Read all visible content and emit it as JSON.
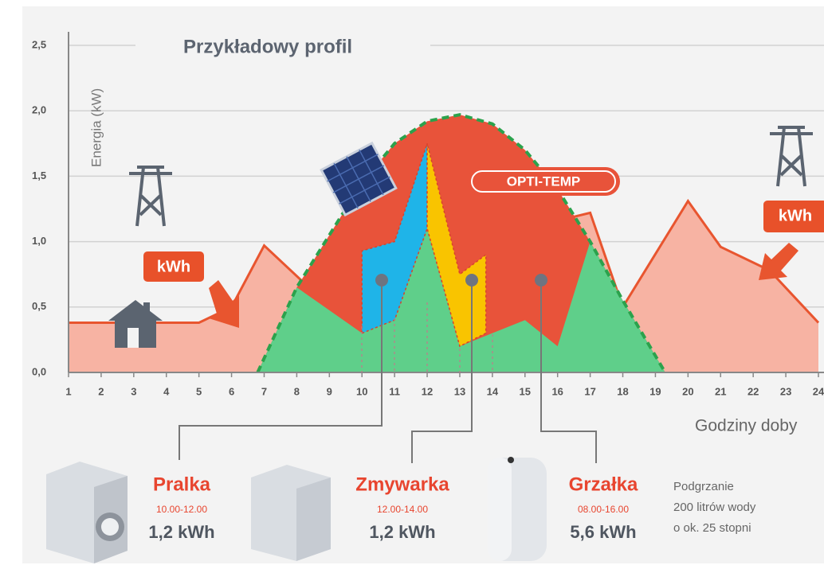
{
  "chart_data": {
    "type": "area",
    "title": "Przykładowy profil",
    "y_label": "Energia (kW)",
    "x_label": "Godziny doby",
    "xlim": [
      1,
      24
    ],
    "xticks": [
      1,
      2,
      3,
      4,
      5,
      6,
      7,
      8,
      9,
      10,
      11,
      12,
      13,
      14,
      15,
      16,
      17,
      18,
      19,
      20,
      21,
      22,
      23,
      24
    ],
    "ylim": [
      0,
      2.5
    ],
    "yticks": [
      {
        "value": 0,
        "label": "0,0"
      },
      {
        "value": 0.5,
        "label": "0,5"
      },
      {
        "value": 1,
        "label": "1,0"
      },
      {
        "value": 1.5,
        "label": "1,5"
      },
      {
        "value": 2,
        "label": "2,0"
      },
      {
        "value": 2.5,
        "label": "2,5"
      }
    ],
    "grid": true,
    "series": [
      {
        "color": "#f7b3a3",
        "line_color": "#e8552f",
        "shape": "area",
        "x": [
          1,
          5,
          6,
          7,
          8.2,
          17,
          18,
          20,
          21,
          22.5,
          24
        ],
        "values": [
          0.38,
          0.38,
          0.5,
          0.97,
          0.69,
          1.22,
          0.5,
          1.31,
          0.96,
          0.78,
          0.38
        ]
      },
      {
        "color": "#e8533a",
        "outline": "#2ba24c",
        "shape": "area",
        "x": [
          6.8,
          8,
          9,
          10,
          11,
          12,
          13,
          14,
          15,
          16,
          17,
          18,
          19.3
        ],
        "values": [
          0,
          0.65,
          1.05,
          1.45,
          1.75,
          1.92,
          1.97,
          1.9,
          1.7,
          1.4,
          1.0,
          0.55,
          0
        ]
      },
      {
        "color": "#5fcf8a",
        "shape": "area",
        "x": [
          6.8,
          8,
          10,
          11,
          12,
          13,
          14,
          15,
          16,
          17,
          18,
          19.3
        ],
        "values": [
          0,
          0.65,
          0.3,
          0.4,
          1.1,
          0.2,
          0.3,
          0.4,
          0.2,
          1.0,
          0.55,
          0
        ]
      },
      {
        "color": "#1fb4e8",
        "shape": "polygon",
        "x": [
          10,
          10,
          11,
          12,
          12,
          11
        ],
        "values": [
          0.3,
          0.93,
          1.0,
          1.75,
          1.1,
          0.4
        ]
      },
      {
        "color": "#f9c400",
        "shape": "polygon",
        "x": [
          12,
          12,
          13,
          13.8,
          13.8,
          13
        ],
        "values": [
          1.75,
          1.1,
          0.2,
          0.3,
          0.9,
          0.75
        ]
      }
    ]
  },
  "badges": [
    "kWh",
    "kWh",
    "OPTI-TEMP"
  ],
  "appliances": [
    {
      "name": "Pralka",
      "hours": "10.00-12.00",
      "energy": "1,2 kWh"
    },
    {
      "name": "Zmywarka",
      "hours": "12.00-14.00",
      "energy": "1,2 kWh"
    },
    {
      "name": "Grzałka",
      "hours": "08.00-16.00",
      "energy": "5,6 kWh"
    }
  ],
  "note": [
    "Podgrzanie",
    "200 litrów wody",
    "o ok. 25 stopni"
  ]
}
